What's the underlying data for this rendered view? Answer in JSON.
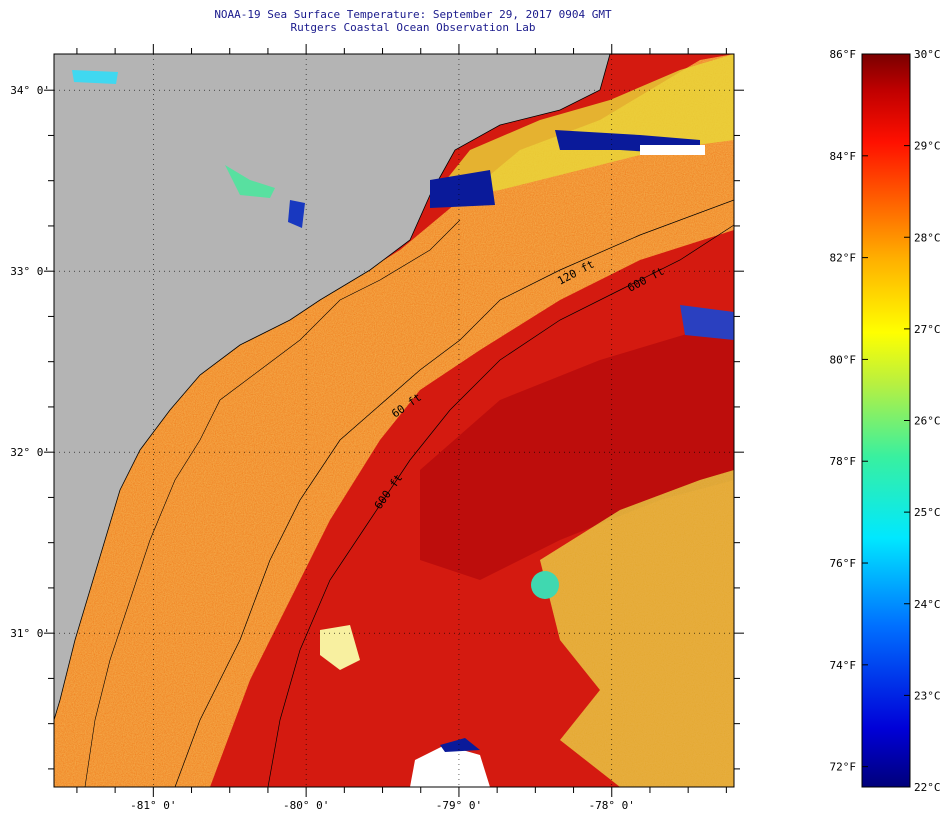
{
  "title": "NOAA-19 Sea Surface Temperature:  September 29, 2017 0904 GMT",
  "subtitle": "Rutgers Coastal Ocean Observation Lab",
  "map": {
    "lon_range": [
      -81.65,
      -77.2
    ],
    "lat_range": [
      30.15,
      34.2
    ],
    "lat_labels": [
      {
        "value": 34,
        "text": "34° 0'"
      },
      {
        "value": 33,
        "text": "33° 0'"
      },
      {
        "value": 32,
        "text": "32° 0'"
      },
      {
        "value": 31,
        "text": "31° 0'"
      }
    ],
    "lon_labels": [
      {
        "value": -81,
        "text": "-81° 0'"
      },
      {
        "value": -80,
        "text": "-80° 0'"
      },
      {
        "value": -79,
        "text": "-79° 0'"
      },
      {
        "value": -78,
        "text": "-78° 0'"
      }
    ],
    "isobaths": [
      {
        "label": "120 ft"
      },
      {
        "label": "600 ft"
      },
      {
        "label": "60 ft"
      },
      {
        "label": "600 ft"
      }
    ],
    "colors": {
      "land": "#b4b4b4",
      "shelf_water": "#f07818",
      "offshore_water": "#d41a10",
      "deep_core": "#b80c0c",
      "cool_water": "#e8d838",
      "cloud": "#ffffff"
    }
  },
  "colorbar": {
    "fahrenheit_ticks": [
      {
        "value": 86,
        "text": "86°F"
      },
      {
        "value": 84,
        "text": "84°F"
      },
      {
        "value": 82,
        "text": "82°F"
      },
      {
        "value": 80,
        "text": "80°F"
      },
      {
        "value": 78,
        "text": "78°F"
      },
      {
        "value": 76,
        "text": "76°F"
      },
      {
        "value": 74,
        "text": "74°F"
      },
      {
        "value": 72,
        "text": "72°F"
      }
    ],
    "celsius_ticks": [
      {
        "value": 30,
        "text": "30°C"
      },
      {
        "value": 29,
        "text": "29°C"
      },
      {
        "value": 28,
        "text": "28°C"
      },
      {
        "value": 27,
        "text": "27°C"
      },
      {
        "value": 26,
        "text": "26°C"
      },
      {
        "value": 25,
        "text": "25°C"
      },
      {
        "value": 24,
        "text": "24°C"
      },
      {
        "value": 23,
        "text": "23°C"
      },
      {
        "value": 22,
        "text": "22°C"
      }
    ],
    "range_c": [
      22,
      30
    ]
  }
}
